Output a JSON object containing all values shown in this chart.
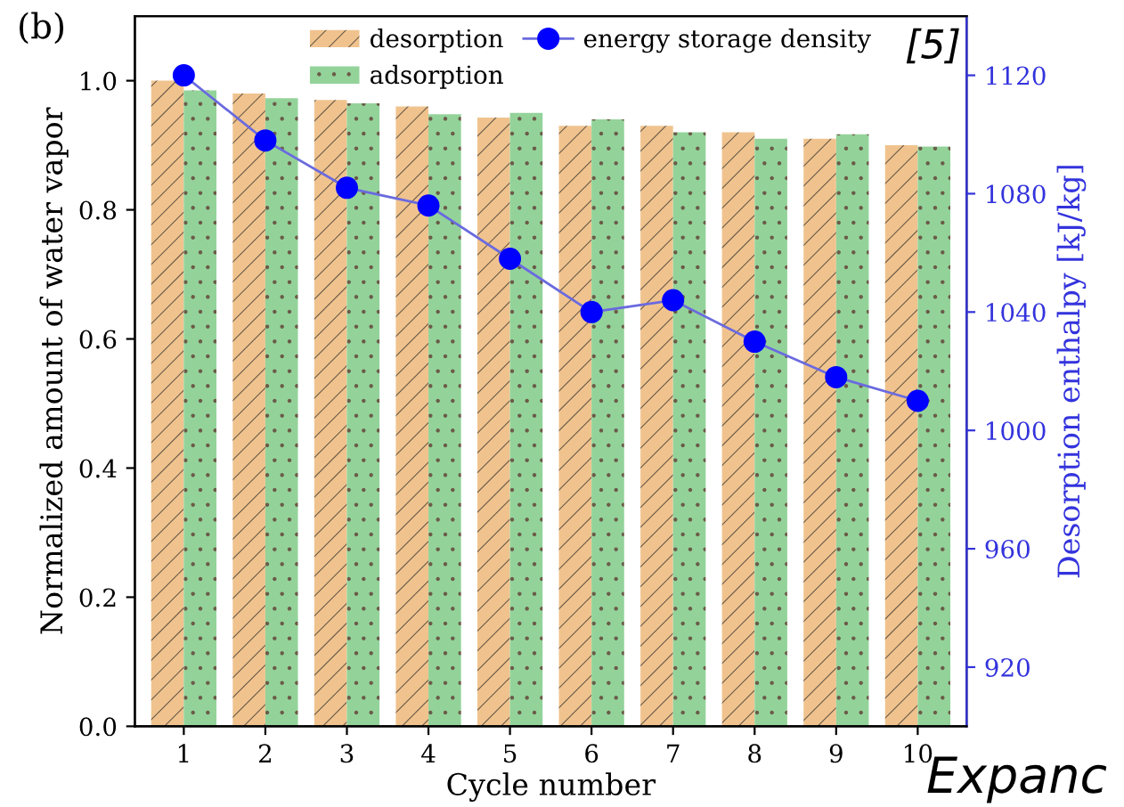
{
  "chart_data": {
    "type": "bar",
    "xlabel": "Cycle number",
    "ylabel": "Normalized amount of water vapor",
    "y2label": "Desorption enthalpy [kJ/kg]",
    "categories": [
      "1",
      "2",
      "3",
      "4",
      "5",
      "6",
      "7",
      "8",
      "9",
      "10"
    ],
    "series": [
      {
        "name": "desorption",
        "color": "#f0c38e",
        "values": [
          1.0,
          0.98,
          0.97,
          0.96,
          0.943,
          0.93,
          0.93,
          0.92,
          0.91,
          0.9
        ]
      },
      {
        "name": "adsorption",
        "color": "#93d39a",
        "values": [
          0.985,
          0.973,
          0.965,
          0.948,
          0.95,
          0.94,
          0.92,
          0.91,
          0.917,
          0.898
        ]
      },
      {
        "name": "energy storage density",
        "type": "line",
        "axis": "y2",
        "color": "#0000ff",
        "marker": "circle",
        "values": [
          1120,
          1098,
          1082,
          1076,
          1058,
          1040,
          1044,
          1030,
          1018,
          1010
        ]
      }
    ],
    "ylim": [
      0,
      1.1
    ],
    "yticks": [
      {
        "value": 0,
        "label": "0.0"
      },
      {
        "value": 0.2,
        "label": "0.2"
      },
      {
        "value": 0.4,
        "label": "0.4"
      },
      {
        "value": 0.6,
        "label": "0.6"
      },
      {
        "value": 0.8,
        "label": "0.8"
      },
      {
        "value": 1.0,
        "label": "1.0"
      }
    ],
    "y2lim": [
      900,
      1140
    ],
    "y2ticks": [
      920,
      960,
      1000,
      1040,
      1080,
      1120
    ],
    "legend": "top right",
    "grid": false,
    "annotations": [
      "(b)",
      "[5]",
      "Expanc"
    ]
  }
}
